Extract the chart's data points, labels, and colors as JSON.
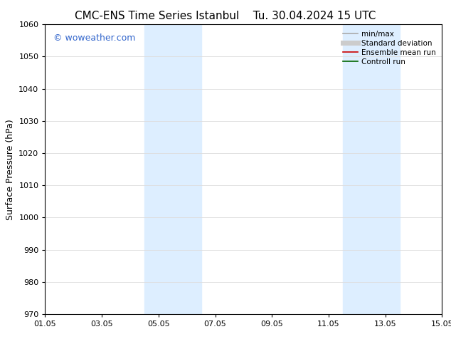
{
  "title_left": "CMC-ENS Time Series Istanbul",
  "title_right": "Tu. 30.04.2024 15 UTC",
  "ylabel": "Surface Pressure (hPa)",
  "ylim": [
    970,
    1060
  ],
  "yticks": [
    970,
    980,
    990,
    1000,
    1010,
    1020,
    1030,
    1040,
    1050,
    1060
  ],
  "xtick_labels": [
    "01.05",
    "03.05",
    "05.05",
    "07.05",
    "09.05",
    "11.05",
    "13.05",
    "15.05"
  ],
  "xtick_positions": [
    0,
    2,
    4,
    6,
    8,
    10,
    12,
    14
  ],
  "xmin": 0,
  "xmax": 14,
  "shaded_regions": [
    {
      "xmin": 3.5,
      "xmax": 5.5,
      "color": "#ddeeff"
    },
    {
      "xmin": 10.5,
      "xmax": 12.5,
      "color": "#ddeeff"
    }
  ],
  "watermark_text": "© woweather.com",
  "watermark_color": "#3366cc",
  "watermark_fontsize": 9,
  "legend_items": [
    {
      "label": "min/max",
      "color": "#aaaaaa",
      "lw": 1.2
    },
    {
      "label": "Standard deviation",
      "color": "#cccccc",
      "lw": 5
    },
    {
      "label": "Ensemble mean run",
      "color": "#cc0000",
      "lw": 1.2
    },
    {
      "label": "Controll run",
      "color": "#006600",
      "lw": 1.2
    }
  ],
  "bg_color": "#ffffff",
  "grid_color": "#dddddd",
  "title_fontsize": 11,
  "ylabel_fontsize": 9,
  "tick_fontsize": 8,
  "legend_fontsize": 7.5
}
